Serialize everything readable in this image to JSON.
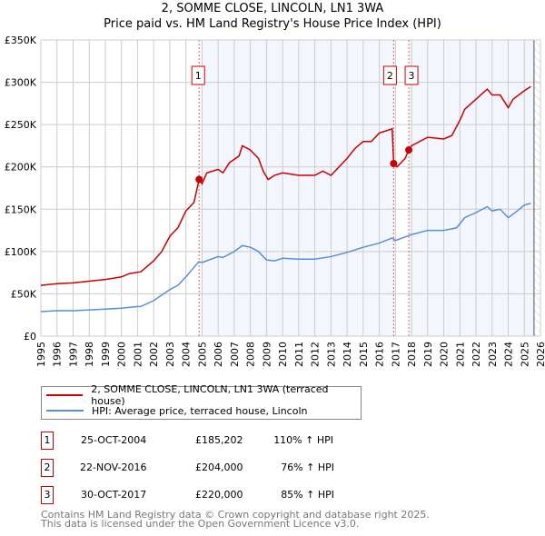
{
  "chart_data": {
    "type": "line",
    "title": "2, SOMME CLOSE, LINCOLN, LN1 3WA",
    "subtitle": "Price paid vs. HM Land Registry's House Price Index (HPI)",
    "xlim": [
      1995,
      2026
    ],
    "ylim": [
      0,
      350000
    ],
    "x_ticks": [
      "1995",
      "1996",
      "1997",
      "1998",
      "1999",
      "2000",
      "2001",
      "2002",
      "2003",
      "2004",
      "2005",
      "2006",
      "2007",
      "2008",
      "2009",
      "2010",
      "2011",
      "2012",
      "2013",
      "2014",
      "2015",
      "2016",
      "2017",
      "2018",
      "2019",
      "2020",
      "2021",
      "2022",
      "2023",
      "2024",
      "2025",
      "2026"
    ],
    "y_ticks": [
      {
        "v": 0,
        "label": "£0"
      },
      {
        "v": 50000,
        "label": "£50K"
      },
      {
        "v": 100000,
        "label": "£100K"
      },
      {
        "v": 150000,
        "label": "£150K"
      },
      {
        "v": 200000,
        "label": "£200K"
      },
      {
        "v": 250000,
        "label": "£250K"
      },
      {
        "v": 300000,
        "label": "£300K"
      },
      {
        "v": 350000,
        "label": "£350K"
      }
    ],
    "grid": true,
    "series": [
      {
        "name": "2, SOMME CLOSE, LINCOLN, LN1 3WA (terraced house)",
        "color": "#cc0000",
        "x": [
          1995,
          1996,
          1997,
          1998,
          1999,
          2000,
          2000.5,
          2001.2,
          2002,
          2002.5,
          2003,
          2003.5,
          2004,
          2004.5,
          2004.82,
          2005,
          2005.3,
          2006,
          2006.3,
          2006.7,
          2007.3,
          2007.5,
          2008,
          2008.5,
          2008.8,
          2009.1,
          2009.5,
          2010,
          2011,
          2012,
          2012.5,
          2013,
          2013.5,
          2014,
          2014.5,
          2015,
          2015.5,
          2016,
          2016.8,
          2016.89,
          2017.1,
          2017.6,
          2017.83,
          2018,
          2019,
          2020,
          2020.5,
          2021,
          2021.3,
          2022,
          2022.7,
          2023,
          2023.5,
          2024,
          2024.3,
          2025,
          2025.4
        ],
        "y": [
          60000,
          62000,
          63000,
          65000,
          67000,
          70000,
          74000,
          76000,
          89000,
          100000,
          118000,
          128000,
          148000,
          158000,
          185202,
          180000,
          193000,
          197000,
          193000,
          205000,
          213000,
          225000,
          220000,
          210000,
          195000,
          185000,
          190000,
          193000,
          190000,
          190000,
          195000,
          190000,
          200000,
          210000,
          222000,
          230000,
          230000,
          240000,
          245000,
          204000,
          200000,
          210000,
          220000,
          225000,
          235000,
          233000,
          237000,
          255000,
          268000,
          280000,
          292000,
          285000,
          285000,
          270000,
          280000,
          290000,
          295000
        ]
      },
      {
        "name": "HPI: Average price, terraced house, Lincoln",
        "color": "#5b8ed6",
        "x": [
          1995,
          1996,
          1997,
          1998,
          1999,
          2000,
          2001,
          2001.2,
          2002,
          2003,
          2003.5,
          2004,
          2004.8,
          2005,
          2006,
          2006.3,
          2007,
          2007.5,
          2008,
          2008.5,
          2009,
          2009.5,
          2010,
          2011,
          2012,
          2013,
          2014,
          2015,
          2016,
          2016.8,
          2017,
          2018,
          2019,
          2020,
          2020.8,
          2021.3,
          2022,
          2022.7,
          2023,
          2023.5,
          2024,
          2024.5,
          2025,
          2025.4
        ],
        "y": [
          29000,
          30000,
          30000,
          31000,
          32000,
          33000,
          35000,
          35000,
          42000,
          55000,
          60000,
          70000,
          88000,
          87000,
          94000,
          93000,
          100000,
          107000,
          105000,
          100000,
          90000,
          89000,
          92000,
          91000,
          91000,
          94000,
          99000,
          105000,
          110000,
          116000,
          113000,
          120000,
          125000,
          125000,
          128000,
          140000,
          146000,
          153000,
          148000,
          150000,
          140000,
          147000,
          155000,
          157000
        ]
      }
    ],
    "sales": [
      {
        "id": "1",
        "x": 2004.82,
        "y": 185202,
        "date": "25-OCT-2004",
        "price": "£185,202",
        "hpi": "110% ↑ HPI"
      },
      {
        "id": "2",
        "x": 2016.89,
        "y": 204000,
        "date": "22-NOV-2016",
        "price": "£204,000",
        "hpi": "76% ↑ HPI"
      },
      {
        "id": "3",
        "x": 2017.83,
        "y": 220000,
        "date": "30-OCT-2017",
        "price": "£220,000",
        "hpi": "85% ↑ HPI"
      }
    ],
    "forecast_from": 2025.6,
    "legend_placement": "below"
  },
  "footer": {
    "line1": "Contains HM Land Registry data © Crown copyright and database right 2025.",
    "line2": "This data is licensed under the Open Government Licence v3.0."
  }
}
